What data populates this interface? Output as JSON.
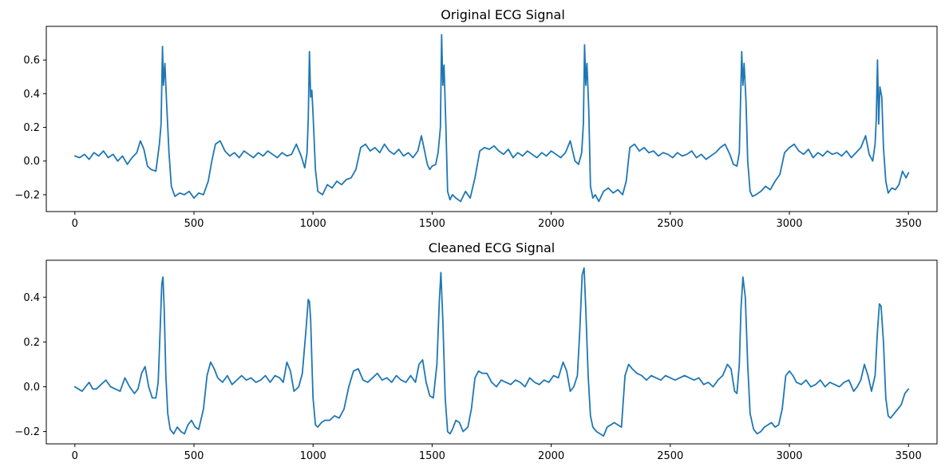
{
  "figure": {
    "background": "#ffffff",
    "line_color": "#1f77b4"
  },
  "chart_data": [
    {
      "type": "line",
      "title": "Original ECG Signal",
      "xlabel": "",
      "ylabel": "",
      "xlim": [
        -120,
        3620
      ],
      "ylim": [
        -0.3,
        0.8
      ],
      "xticks": [
        0,
        500,
        1000,
        1500,
        2000,
        2500,
        3000,
        3500
      ],
      "xtick_labels": [
        "0",
        "500",
        "1000",
        "1500",
        "2000",
        "2500",
        "3000",
        "3500"
      ],
      "yticks": [
        -0.2,
        0.0,
        0.2,
        0.4,
        0.6
      ],
      "ytick_labels": [
        "−0.2",
        "0.0",
        "0.2",
        "0.4",
        "0.6"
      ],
      "grid": false,
      "series": [
        {
          "color": "#1f77b4",
          "x": [
            0,
            20,
            40,
            60,
            80,
            100,
            120,
            140,
            160,
            180,
            200,
            220,
            240,
            260,
            275,
            290,
            305,
            320,
            340,
            355,
            362,
            368,
            372,
            378,
            385,
            395,
            405,
            420,
            440,
            460,
            480,
            500,
            520,
            540,
            560,
            575,
            590,
            610,
            630,
            650,
            670,
            690,
            710,
            730,
            750,
            770,
            790,
            810,
            830,
            850,
            870,
            890,
            910,
            930,
            950,
            965,
            975,
            980,
            985,
            990,
            995,
            1000,
            1010,
            1020,
            1040,
            1060,
            1080,
            1100,
            1120,
            1140,
            1160,
            1180,
            1200,
            1220,
            1240,
            1260,
            1280,
            1300,
            1320,
            1340,
            1360,
            1380,
            1400,
            1420,
            1440,
            1455,
            1470,
            1480,
            1490,
            1500,
            1515,
            1525,
            1535,
            1540,
            1545,
            1550,
            1558,
            1565,
            1575,
            1585,
            1600,
            1620,
            1640,
            1660,
            1680,
            1700,
            1720,
            1740,
            1760,
            1780,
            1800,
            1820,
            1840,
            1860,
            1880,
            1900,
            1920,
            1940,
            1960,
            1980,
            2000,
            2020,
            2040,
            2060,
            2080,
            2100,
            2115,
            2128,
            2135,
            2140,
            2145,
            2150,
            2158,
            2165,
            2175,
            2185,
            2200,
            2220,
            2240,
            2260,
            2280,
            2300,
            2315,
            2330,
            2350,
            2370,
            2390,
            2410,
            2430,
            2450,
            2470,
            2490,
            2510,
            2530,
            2550,
            2570,
            2590,
            2610,
            2630,
            2650,
            2670,
            2690,
            2710,
            2730,
            2750,
            2765,
            2780,
            2790,
            2795,
            2800,
            2805,
            2810,
            2818,
            2825,
            2835,
            2845,
            2860,
            2880,
            2900,
            2920,
            2940,
            2960,
            2980,
            3000,
            3020,
            3040,
            3060,
            3080,
            3100,
            3120,
            3140,
            3160,
            3180,
            3200,
            3220,
            3240,
            3260,
            3280,
            3300,
            3320,
            3335,
            3350,
            3360,
            3365,
            3370,
            3375,
            3380,
            3388,
            3395,
            3405,
            3415,
            3430,
            3445,
            3460,
            3475,
            3490,
            3500
          ],
          "y": [
            0.03,
            0.02,
            0.04,
            0.01,
            0.05,
            0.03,
            0.06,
            0.02,
            0.04,
            0.0,
            0.03,
            -0.02,
            0.02,
            0.05,
            0.12,
            0.07,
            -0.03,
            -0.05,
            -0.06,
            0.1,
            0.22,
            0.68,
            0.45,
            0.58,
            0.35,
            0.05,
            -0.15,
            -0.21,
            -0.19,
            -0.2,
            -0.18,
            -0.22,
            -0.19,
            -0.2,
            -0.12,
            0.0,
            0.1,
            0.12,
            0.06,
            0.03,
            0.05,
            0.02,
            0.06,
            0.04,
            0.02,
            0.05,
            0.03,
            0.06,
            0.04,
            0.02,
            0.05,
            0.03,
            0.04,
            0.1,
            0.03,
            -0.04,
            0.05,
            0.25,
            0.65,
            0.38,
            0.42,
            0.28,
            -0.05,
            -0.18,
            -0.2,
            -0.14,
            -0.16,
            -0.12,
            -0.14,
            -0.11,
            -0.1,
            -0.05,
            0.08,
            0.1,
            0.06,
            0.08,
            0.05,
            0.1,
            0.06,
            0.04,
            0.07,
            0.03,
            0.05,
            0.02,
            0.06,
            0.15,
            0.05,
            -0.02,
            -0.05,
            -0.03,
            -0.02,
            0.05,
            0.2,
            0.75,
            0.45,
            0.57,
            0.2,
            -0.18,
            -0.23,
            -0.2,
            -0.22,
            -0.24,
            -0.18,
            -0.22,
            -0.1,
            0.06,
            0.08,
            0.07,
            0.09,
            0.06,
            0.04,
            0.07,
            0.02,
            0.05,
            0.03,
            0.06,
            0.04,
            0.02,
            0.05,
            0.03,
            0.06,
            0.04,
            0.02,
            0.05,
            0.12,
            0.0,
            -0.02,
            0.05,
            0.22,
            0.69,
            0.45,
            0.58,
            0.3,
            -0.15,
            -0.22,
            -0.2,
            -0.24,
            -0.18,
            -0.16,
            -0.19,
            -0.17,
            -0.2,
            -0.12,
            0.08,
            0.1,
            0.06,
            0.08,
            0.05,
            0.06,
            0.03,
            0.05,
            0.04,
            0.02,
            0.05,
            0.03,
            0.04,
            0.06,
            0.02,
            0.04,
            0.01,
            0.03,
            0.05,
            0.08,
            0.1,
            0.04,
            -0.02,
            -0.03,
            0.05,
            0.35,
            0.65,
            0.45,
            0.58,
            0.35,
            0.0,
            -0.18,
            -0.21,
            -0.2,
            -0.18,
            -0.15,
            -0.17,
            -0.12,
            -0.08,
            0.05,
            0.08,
            0.1,
            0.06,
            0.04,
            0.07,
            0.02,
            0.05,
            0.03,
            0.06,
            0.04,
            0.05,
            0.03,
            0.06,
            0.02,
            0.05,
            0.08,
            0.15,
            0.04,
            0.0,
            0.1,
            0.25,
            0.6,
            0.22,
            0.44,
            0.38,
            0.08,
            -0.12,
            -0.19,
            -0.16,
            -0.17,
            -0.14,
            -0.06,
            -0.1,
            -0.07
          ]
        }
      ]
    },
    {
      "type": "line",
      "title": "Cleaned ECG Signal",
      "xlabel": "",
      "ylabel": "",
      "xlim": [
        -120,
        3620
      ],
      "ylim": [
        -0.255,
        0.565
      ],
      "xticks": [
        0,
        500,
        1000,
        1500,
        2000,
        2500,
        3000,
        3500
      ],
      "xtick_labels": [
        "0",
        "500",
        "1000",
        "1500",
        "2000",
        "2500",
        "3000",
        "3500"
      ],
      "yticks": [
        -0.2,
        0.0,
        0.2,
        0.4
      ],
      "ytick_labels": [
        "−0.2",
        "0.0",
        "0.2",
        "0.4"
      ],
      "grid": false,
      "series": [
        {
          "color": "#1f77b4",
          "x": [
            0,
            15,
            30,
            45,
            60,
            75,
            90,
            110,
            130,
            150,
            170,
            190,
            210,
            230,
            250,
            265,
            280,
            295,
            310,
            325,
            340,
            350,
            358,
            365,
            370,
            375,
            382,
            390,
            400,
            415,
            430,
            445,
            460,
            475,
            490,
            505,
            520,
            540,
            555,
            570,
            585,
            600,
            620,
            640,
            660,
            680,
            700,
            720,
            740,
            760,
            780,
            800,
            820,
            840,
            860,
            875,
            890,
            905,
            920,
            940,
            955,
            970,
            980,
            985,
            990,
            995,
            1000,
            1010,
            1020,
            1035,
            1050,
            1070,
            1090,
            1110,
            1130,
            1150,
            1170,
            1190,
            1210,
            1230,
            1250,
            1270,
            1290,
            1310,
            1330,
            1350,
            1370,
            1390,
            1410,
            1430,
            1445,
            1460,
            1475,
            1490,
            1505,
            1520,
            1530,
            1537,
            1545,
            1555,
            1565,
            1575,
            1585,
            1600,
            1615,
            1630,
            1650,
            1665,
            1680,
            1695,
            1710,
            1730,
            1750,
            1770,
            1790,
            1810,
            1830,
            1850,
            1870,
            1890,
            1910,
            1930,
            1950,
            1970,
            1990,
            2010,
            2030,
            2050,
            2065,
            2080,
            2095,
            2110,
            2120,
            2130,
            2138,
            2145,
            2155,
            2165,
            2175,
            2190,
            2205,
            2220,
            2235,
            2250,
            2265,
            2280,
            2295,
            2310,
            2325,
            2340,
            2360,
            2380,
            2400,
            2420,
            2440,
            2460,
            2480,
            2500,
            2520,
            2540,
            2560,
            2580,
            2600,
            2620,
            2640,
            2660,
            2680,
            2700,
            2720,
            2740,
            2755,
            2770,
            2780,
            2790,
            2797,
            2805,
            2815,
            2825,
            2835,
            2850,
            2865,
            2880,
            2895,
            2910,
            2925,
            2940,
            2955,
            2970,
            2985,
            3000,
            3015,
            3030,
            3050,
            3070,
            3090,
            3110,
            3130,
            3150,
            3170,
            3190,
            3210,
            3230,
            3250,
            3270,
            3285,
            3300,
            3315,
            3330,
            3345,
            3360,
            3370,
            3378,
            3385,
            3395,
            3405,
            3415,
            3425,
            3440,
            3455,
            3470,
            3485,
            3500
          ],
          "y": [
            0.0,
            -0.01,
            -0.02,
            0.0,
            0.02,
            -0.01,
            -0.01,
            0.01,
            0.03,
            0.0,
            -0.01,
            -0.02,
            0.04,
            0.0,
            -0.03,
            -0.01,
            0.06,
            0.09,
            0.0,
            -0.05,
            -0.05,
            0.02,
            0.25,
            0.46,
            0.49,
            0.35,
            0.05,
            -0.12,
            -0.19,
            -0.21,
            -0.18,
            -0.2,
            -0.21,
            -0.17,
            -0.15,
            -0.18,
            -0.19,
            -0.1,
            0.05,
            0.11,
            0.08,
            0.04,
            0.02,
            0.05,
            0.01,
            0.03,
            0.05,
            0.03,
            0.04,
            0.02,
            0.03,
            0.05,
            0.02,
            0.05,
            0.04,
            0.02,
            0.11,
            0.07,
            -0.02,
            0.0,
            0.06,
            0.25,
            0.39,
            0.38,
            0.3,
            0.12,
            -0.05,
            -0.17,
            -0.18,
            -0.16,
            -0.15,
            -0.15,
            -0.13,
            -0.14,
            -0.1,
            0.0,
            0.07,
            0.08,
            0.03,
            0.02,
            0.04,
            0.06,
            0.03,
            0.04,
            0.02,
            0.05,
            0.03,
            0.02,
            0.05,
            0.02,
            0.1,
            0.12,
            0.02,
            -0.04,
            -0.05,
            0.1,
            0.38,
            0.51,
            0.3,
            -0.05,
            -0.2,
            -0.21,
            -0.19,
            -0.15,
            -0.16,
            -0.2,
            -0.18,
            -0.1,
            0.04,
            0.07,
            0.06,
            0.06,
            0.02,
            0.0,
            0.03,
            0.02,
            0.01,
            0.03,
            0.02,
            0.0,
            0.04,
            0.02,
            0.01,
            0.03,
            0.02,
            0.05,
            0.04,
            0.11,
            0.07,
            -0.02,
            0.0,
            0.05,
            0.25,
            0.5,
            0.53,
            0.35,
            0.05,
            -0.13,
            -0.18,
            -0.2,
            -0.21,
            -0.22,
            -0.18,
            -0.17,
            -0.16,
            -0.17,
            -0.18,
            0.05,
            0.1,
            0.08,
            0.06,
            0.05,
            0.03,
            0.05,
            0.04,
            0.03,
            0.05,
            0.04,
            0.03,
            0.04,
            0.05,
            0.04,
            0.03,
            0.04,
            0.01,
            0.02,
            0.0,
            0.03,
            0.05,
            0.1,
            0.08,
            -0.02,
            -0.03,
            0.1,
            0.35,
            0.49,
            0.4,
            0.1,
            -0.12,
            -0.19,
            -0.21,
            -0.2,
            -0.18,
            -0.17,
            -0.16,
            -0.18,
            -0.17,
            -0.1,
            0.05,
            0.07,
            0.05,
            0.02,
            0.01,
            0.03,
            0.0,
            0.01,
            0.03,
            0.0,
            0.02,
            0.01,
            0.0,
            0.02,
            0.03,
            -0.02,
            0.0,
            0.03,
            0.1,
            0.05,
            -0.02,
            0.05,
            0.25,
            0.37,
            0.36,
            0.2,
            -0.05,
            -0.13,
            -0.14,
            -0.12,
            -0.1,
            -0.08,
            -0.03,
            -0.01
          ]
        }
      ]
    }
  ]
}
